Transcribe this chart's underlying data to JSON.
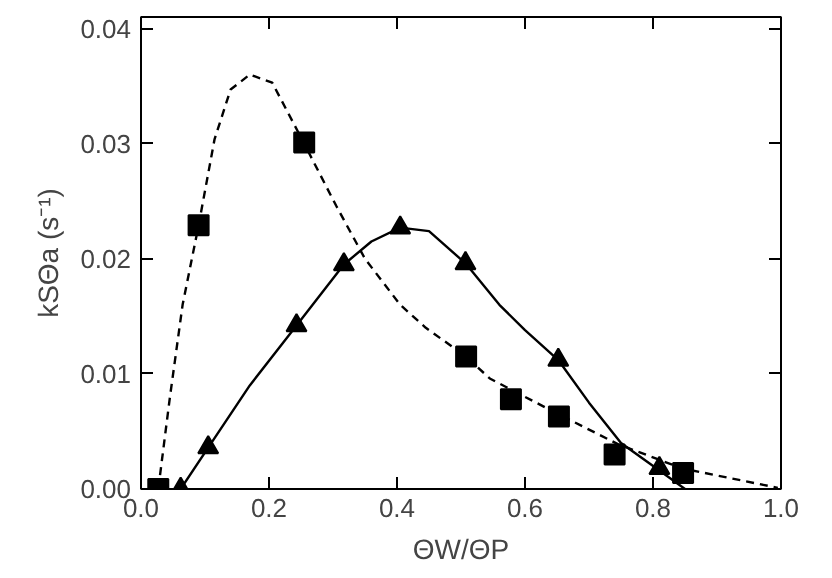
{
  "chart_data": {
    "type": "scatter",
    "xlabel": "ΘW/ΘP",
    "ylabel": "kSΘa (s⁻¹)",
    "xlim": [
      0,
      1
    ],
    "ylim": [
      0,
      0.041
    ],
    "xticks": [
      {
        "value": 0,
        "label": "0.0"
      },
      {
        "value": 0.2,
        "label": "0.2"
      },
      {
        "value": 0.4,
        "label": "0.4"
      },
      {
        "value": 0.6,
        "label": "0.6"
      },
      {
        "value": 0.8,
        "label": "0.8"
      },
      {
        "value": 1,
        "label": "1.0"
      }
    ],
    "yticks": [
      {
        "value": 0,
        "label": "0.00"
      },
      {
        "value": 0.01,
        "label": "0.01"
      },
      {
        "value": 0.02,
        "label": "0.02"
      },
      {
        "value": 0.03,
        "label": "0.03"
      },
      {
        "value": 0.04,
        "label": "0.04"
      }
    ],
    "grid": false,
    "series": [
      {
        "type": "line",
        "color": "#000000",
        "marker": "none",
        "line_style": "dashed",
        "x": [
          0.027,
          0.045,
          0.065,
          0.09,
          0.115,
          0.14,
          0.17,
          0.205,
          0.255,
          0.305,
          0.35,
          0.405,
          0.445,
          0.508,
          0.545,
          0.645,
          0.745,
          0.845,
          0.995
        ],
        "values": [
          0,
          0.0079,
          0.016,
          0.0229,
          0.0304,
          0.0347,
          0.036,
          0.0353,
          0.03,
          0.0246,
          0.02,
          0.016,
          0.014,
          0.0115,
          0.0096,
          0.0067,
          0.0039,
          0.0018,
          0.0001
        ]
      },
      {
        "type": "line",
        "color": "#000000",
        "marker": "none",
        "line_style": "solid",
        "x": [
          0.062,
          0.105,
          0.17,
          0.243,
          0.317,
          0.36,
          0.405,
          0.45,
          0.507,
          0.56,
          0.6,
          0.652,
          0.7,
          0.75,
          0.81,
          0.85
        ],
        "values": [
          0,
          0.0036,
          0.009,
          0.0142,
          0.0195,
          0.0215,
          0.0227,
          0.0224,
          0.0196,
          0.016,
          0.0138,
          0.0112,
          0.0075,
          0.004,
          0.0016,
          0
        ]
      },
      {
        "color": "#000000",
        "marker": "square",
        "x": [
          0.027,
          0.09,
          0.255,
          0.508,
          0.578,
          0.653,
          0.74,
          0.847
        ],
        "values": [
          0,
          0.0229,
          0.0301,
          0.0115,
          0.0078,
          0.0063,
          0.003,
          0.0014
        ]
      },
      {
        "color": "#000000",
        "marker": "triangle",
        "x": [
          0.062,
          0.105,
          0.243,
          0.317,
          0.405,
          0.507,
          0.652,
          0.81
        ],
        "values": [
          0,
          0.0036,
          0.0142,
          0.0195,
          0.0227,
          0.0196,
          0.0112,
          0.0018
        ]
      }
    ]
  }
}
